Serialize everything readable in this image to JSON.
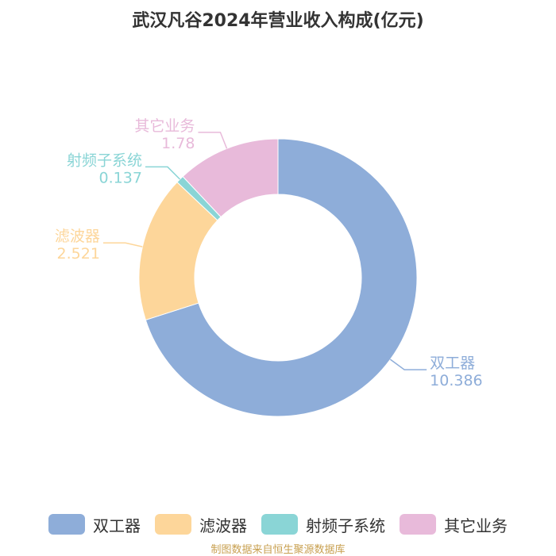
{
  "chart_data": {
    "type": "pie",
    "title": "武汉凡谷2024年营业收入构成(亿元)",
    "categories": [
      "双工器",
      "滤波器",
      "射频子系统",
      "其它业务"
    ],
    "values": [
      10.386,
      2.521,
      0.137,
      1.78
    ],
    "value_labels": [
      "10.386",
      "2.521",
      "0.137",
      "1.78"
    ],
    "colors": [
      "#8eadd9",
      "#fdd69a",
      "#8ad5d6",
      "#e8bada"
    ],
    "donut": true,
    "legend_position": "bottom"
  },
  "source_note": "制图数据来自恒生聚源数据库"
}
